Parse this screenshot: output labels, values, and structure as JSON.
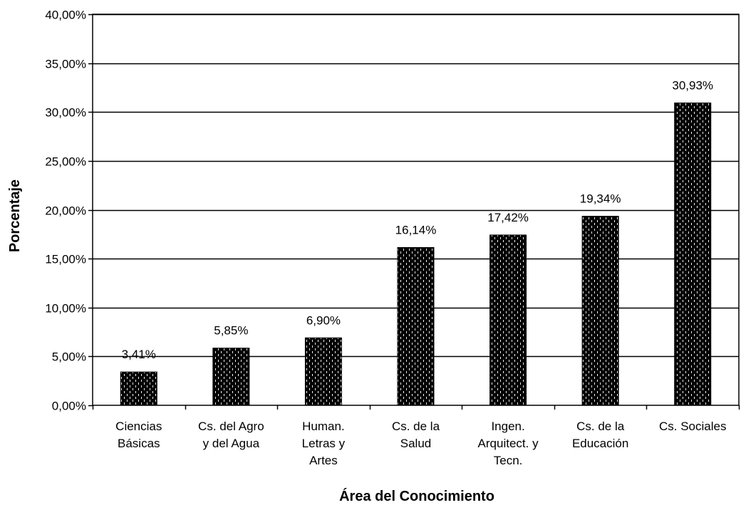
{
  "chart_data": {
    "type": "bar",
    "title": "",
    "xlabel": "Área del Conocimiento",
    "ylabel": "Porcentaje",
    "ylim": [
      0,
      40
    ],
    "yticks": [
      0,
      5,
      10,
      15,
      20,
      25,
      30,
      35,
      40
    ],
    "ytick_labels": [
      "0,00%",
      "5,00%",
      "10,00%",
      "15,00%",
      "20,00%",
      "25,00%",
      "30,00%",
      "35,00%",
      "40,00%"
    ],
    "grid": "horizontal",
    "legend": "none",
    "categories": [
      [
        "Ciencias",
        "Básicas"
      ],
      [
        "Cs. del Agro",
        "y del Agua"
      ],
      [
        "Human.",
        "Letras y",
        "Artes"
      ],
      [
        "Cs. de la",
        "Salud"
      ],
      [
        "Ingen.",
        "Arquitect. y",
        "Tecn."
      ],
      [
        "Cs. de la",
        "Educación"
      ],
      [
        "Cs. Sociales"
      ]
    ],
    "values": [
      3.41,
      5.85,
      6.9,
      16.14,
      17.42,
      19.34,
      30.93
    ],
    "value_labels": [
      "3,41%",
      "5,85%",
      "6,90%",
      "16,14%",
      "17,42%",
      "19,34%",
      "30,93%"
    ],
    "colors": {
      "bar_fill": "#000000",
      "bar_pattern": "#ffffff",
      "grid": "#000000"
    }
  }
}
